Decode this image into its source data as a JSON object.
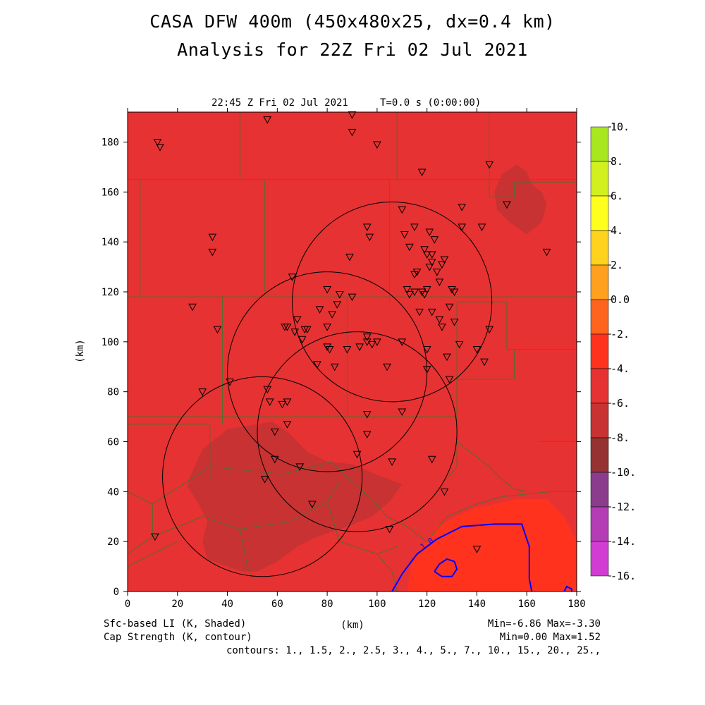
{
  "title": "CASA DFW 400m (450x480x25, dx=0.4 km)",
  "subtitle": "Analysis for 22Z Fri 02 Jul 2021",
  "plot_time": "22:45 Z Fri 02 Jul 2021",
  "integration_time": "T=0.0 s (0:00:00)",
  "footer": {
    "shaded_label": "Sfc-based LI (K, Shaded)",
    "contour_label": "Cap Strength (K, contour)",
    "axis_unit": "(km)",
    "shaded_stats": "Min=-6.86 Max=-3.30",
    "contour_stats": "Min=0.00 Max=1.52",
    "contours": "contours: 1., 1.5, 2., 2.5, 3., 4., 5., 7., 10., 15., 20., 25.,"
  },
  "chart_data": {
    "type": "heatmap",
    "xlabel": "(km)",
    "ylabel": "(km)",
    "xlim": [
      0,
      180
    ],
    "ylim": [
      0,
      192
    ],
    "xticks": [
      0,
      20,
      40,
      60,
      80,
      100,
      120,
      140,
      160,
      180
    ],
    "yticks": [
      0,
      20,
      40,
      60,
      80,
      100,
      120,
      140,
      160,
      180
    ],
    "background_value_range": [
      -6,
      -4
    ],
    "colorbar": {
      "levels": [
        "10.",
        "8.",
        "6.",
        "4.",
        "2.",
        "0.0",
        "-2.",
        "-4.",
        "-6.",
        "-8.",
        "-10.",
        "-12.",
        "-14.",
        "-16."
      ],
      "colors": [
        "#a8e61e",
        "#d2f01e",
        "#ffff1e",
        "#ffd21e",
        "#ffa01e",
        "#ff641e",
        "#ff321e",
        "#e63232",
        "#c83232",
        "#963232",
        "#8c3c8c",
        "#b43cb4",
        "#d23cd2"
      ]
    },
    "shaded_regions": [
      {
        "level": "-8 to -6",
        "color": "#c83232",
        "polygon": [
          [
            25,
            46
          ],
          [
            30,
            57
          ],
          [
            40,
            65
          ],
          [
            52,
            67
          ],
          [
            58,
            68
          ],
          [
            64,
            64
          ],
          [
            72,
            56
          ],
          [
            80,
            52
          ],
          [
            90,
            51
          ],
          [
            102,
            46
          ],
          [
            110,
            43
          ],
          [
            105,
            36
          ],
          [
            98,
            30
          ],
          [
            88,
            26
          ],
          [
            76,
            22
          ],
          [
            68,
            18
          ],
          [
            60,
            12
          ],
          [
            52,
            8
          ],
          [
            46,
            8
          ],
          [
            40,
            10
          ],
          [
            32,
            13
          ],
          [
            30,
            20
          ],
          [
            32,
            28
          ],
          [
            28,
            36
          ],
          [
            24,
            42
          ]
        ]
      },
      {
        "level": "-8 to -6",
        "color": "#c83232",
        "polygon": [
          [
            147,
            160
          ],
          [
            150,
            167
          ],
          [
            156,
            171
          ],
          [
            160,
            168
          ],
          [
            162,
            163
          ],
          [
            166,
            160
          ],
          [
            168,
            155
          ],
          [
            166,
            148
          ],
          [
            160,
            143
          ],
          [
            153,
            148
          ],
          [
            148,
            153
          ]
        ]
      },
      {
        "level": "-4 to -2",
        "color": "#ff321e",
        "polygon": [
          [
            112,
            0
          ],
          [
            114,
            12
          ],
          [
            124,
            26
          ],
          [
            138,
            33
          ],
          [
            156,
            37
          ],
          [
            168,
            37
          ],
          [
            175,
            30
          ],
          [
            180,
            20
          ],
          [
            180,
            0
          ]
        ]
      }
    ],
    "cap_contours": [
      {
        "value": "1.0",
        "color": "#0000ff",
        "points": [
          [
            106,
            0
          ],
          [
            110,
            7
          ],
          [
            116,
            15
          ],
          [
            124,
            21
          ],
          [
            134,
            26
          ],
          [
            147,
            27
          ],
          [
            158,
            27
          ],
          [
            161,
            18
          ],
          [
            161,
            5
          ],
          [
            162,
            0
          ]
        ]
      },
      {
        "value": "1.5",
        "color": "#0000ff",
        "points": [
          [
            123,
            8
          ],
          [
            125,
            11
          ],
          [
            128,
            13
          ],
          [
            131,
            12
          ],
          [
            132,
            9
          ],
          [
            130,
            6
          ],
          [
            126,
            6
          ],
          [
            123,
            8
          ]
        ]
      },
      {
        "value": "1.0",
        "color": "#0000ff",
        "points": [
          [
            175,
            0
          ],
          [
            176,
            2
          ],
          [
            178,
            1
          ],
          [
            178,
            0
          ]
        ]
      }
    ],
    "radar_circles": [
      {
        "center": [
          106,
          116
        ],
        "radius": 40
      },
      {
        "center": [
          80,
          88
        ],
        "radius": 40
      },
      {
        "center": [
          92,
          64
        ],
        "radius": 40
      },
      {
        "center": [
          54,
          46
        ],
        "radius": 40
      }
    ],
    "stations": [
      [
        12,
        180
      ],
      [
        13,
        178
      ],
      [
        56,
        189
      ],
      [
        90,
        191
      ],
      [
        90,
        184
      ],
      [
        100,
        179
      ],
      [
        118,
        168
      ],
      [
        145,
        171
      ],
      [
        152,
        155
      ],
      [
        134,
        154
      ],
      [
        134,
        146
      ],
      [
        142,
        146
      ],
      [
        168,
        136
      ],
      [
        34,
        142
      ],
      [
        34,
        136
      ],
      [
        26,
        114
      ],
      [
        36,
        105
      ],
      [
        30,
        80
      ],
      [
        41,
        84
      ],
      [
        110,
        153
      ],
      [
        115,
        146
      ],
      [
        121,
        144
      ],
      [
        123,
        141
      ],
      [
        111,
        143
      ],
      [
        96,
        146
      ],
      [
        97,
        142
      ],
      [
        89,
        134
      ],
      [
        113,
        138
      ],
      [
        119,
        137
      ],
      [
        120,
        135
      ],
      [
        122,
        135
      ],
      [
        121,
        130
      ],
      [
        122,
        132
      ],
      [
        126,
        131
      ],
      [
        127,
        133
      ],
      [
        124,
        128
      ],
      [
        116,
        128
      ],
      [
        115,
        127
      ],
      [
        125,
        124
      ],
      [
        112,
        121
      ],
      [
        115,
        120
      ],
      [
        118,
        120
      ],
      [
        120,
        121
      ],
      [
        119,
        119
      ],
      [
        113,
        119
      ],
      [
        130,
        121
      ],
      [
        131,
        120
      ],
      [
        129,
        114
      ],
      [
        117,
        112
      ],
      [
        122,
        112
      ],
      [
        125,
        109
      ],
      [
        126,
        106
      ],
      [
        131,
        108
      ],
      [
        66,
        126
      ],
      [
        80,
        121
      ],
      [
        85,
        119
      ],
      [
        90,
        118
      ],
      [
        77,
        113
      ],
      [
        84,
        115
      ],
      [
        82,
        111
      ],
      [
        68,
        109
      ],
      [
        63,
        106
      ],
      [
        64,
        106
      ],
      [
        67,
        104
      ],
      [
        71,
        105
      ],
      [
        72,
        105
      ],
      [
        70,
        101
      ],
      [
        80,
        106
      ],
      [
        96,
        102
      ],
      [
        98,
        99
      ],
      [
        96,
        100
      ],
      [
        100,
        100
      ],
      [
        110,
        100
      ],
      [
        120,
        97
      ],
      [
        128,
        94
      ],
      [
        133,
        99
      ],
      [
        140,
        97
      ],
      [
        145,
        105
      ],
      [
        143,
        92
      ],
      [
        80,
        98
      ],
      [
        81,
        97
      ],
      [
        88,
        97
      ],
      [
        93,
        98
      ],
      [
        76,
        91
      ],
      [
        83,
        90
      ],
      [
        104,
        90
      ],
      [
        120,
        89
      ],
      [
        129,
        85
      ],
      [
        64,
        76
      ],
      [
        56,
        81
      ],
      [
        57,
        76
      ],
      [
        62,
        75
      ],
      [
        64,
        67
      ],
      [
        59,
        64
      ],
      [
        110,
        72
      ],
      [
        96,
        71
      ],
      [
        96,
        63
      ],
      [
        92,
        55
      ],
      [
        106,
        52
      ],
      [
        122,
        53
      ],
      [
        127,
        40
      ],
      [
        69,
        50
      ],
      [
        59,
        53
      ],
      [
        55,
        45
      ],
      [
        74,
        35
      ],
      [
        105,
        25
      ],
      [
        140,
        17
      ],
      [
        11,
        22
      ]
    ],
    "boundaries": [
      [
        [
          0,
          165
        ],
        [
          180,
          165
        ]
      ],
      [
        [
          5,
          165
        ],
        [
          5,
          118
        ],
        [
          0,
          118
        ]
      ],
      [
        [
          5,
          118
        ],
        [
          180,
          118
        ]
      ],
      [
        [
          45,
          192
        ],
        [
          45,
          165
        ]
      ],
      [
        [
          108,
          192
        ],
        [
          108,
          165
        ]
      ],
      [
        [
          55,
          165
        ],
        [
          55,
          120
        ]
      ],
      [
        [
          105,
          165
        ],
        [
          105,
          116
        ]
      ],
      [
        [
          145,
          192
        ],
        [
          145,
          158
        ],
        [
          155,
          158
        ],
        [
          155,
          164
        ],
        [
          180,
          164
        ]
      ],
      [
        [
          38,
          118
        ],
        [
          38,
          70
        ],
        [
          0,
          70
        ]
      ],
      [
        [
          38,
          70
        ],
        [
          38,
          67
        ]
      ],
      [
        [
          88,
          118
        ],
        [
          88,
          70
        ],
        [
          38,
          70
        ]
      ],
      [
        [
          88,
          70
        ],
        [
          132,
          70
        ],
        [
          132,
          116
        ]
      ],
      [
        [
          132,
          116
        ],
        [
          152,
          116
        ],
        [
          152,
          97
        ],
        [
          180,
          97
        ]
      ],
      [
        [
          132,
          70
        ],
        [
          132,
          85
        ],
        [
          155,
          85
        ],
        [
          155,
          97
        ]
      ],
      [
        [
          132,
          70
        ],
        [
          132,
          60
        ],
        [
          145,
          50
        ],
        [
          150,
          45
        ],
        [
          155,
          41
        ],
        [
          160,
          40
        ]
      ],
      [
        [
          132,
          60
        ],
        [
          132,
          50
        ],
        [
          128,
          45
        ]
      ],
      [
        [
          165,
          60
        ],
        [
          180,
          60
        ]
      ],
      [
        [
          0,
          67
        ],
        [
          33,
          67
        ],
        [
          33,
          50
        ],
        [
          10,
          35
        ],
        [
          0,
          40
        ]
      ],
      [
        [
          33,
          50
        ],
        [
          62,
          47
        ],
        [
          82,
          52
        ],
        [
          90,
          44
        ],
        [
          98,
          37
        ],
        [
          104,
          30
        ],
        [
          108,
          28
        ],
        [
          112,
          26
        ]
      ],
      [
        [
          33,
          50
        ],
        [
          33,
          45
        ]
      ],
      [
        [
          10,
          35
        ],
        [
          10,
          22
        ],
        [
          0,
          15
        ]
      ],
      [
        [
          10,
          22
        ],
        [
          30,
          30
        ],
        [
          45,
          25
        ],
        [
          48,
          10
        ],
        [
          50,
          5
        ]
      ],
      [
        [
          45,
          25
        ],
        [
          65,
          28
        ],
        [
          80,
          36
        ],
        [
          85,
          44
        ]
      ],
      [
        [
          80,
          36
        ],
        [
          85,
          20
        ],
        [
          100,
          15
        ],
        [
          108,
          18
        ]
      ],
      [
        [
          100,
          15
        ],
        [
          106,
          8
        ],
        [
          108,
          0
        ]
      ],
      [
        [
          0,
          10
        ],
        [
          20,
          20
        ]
      ],
      [
        [
          112,
          26
        ],
        [
          120,
          20
        ],
        [
          128,
          30
        ],
        [
          140,
          35
        ],
        [
          150,
          38
        ],
        [
          170,
          40
        ],
        [
          180,
          40
        ]
      ]
    ]
  }
}
